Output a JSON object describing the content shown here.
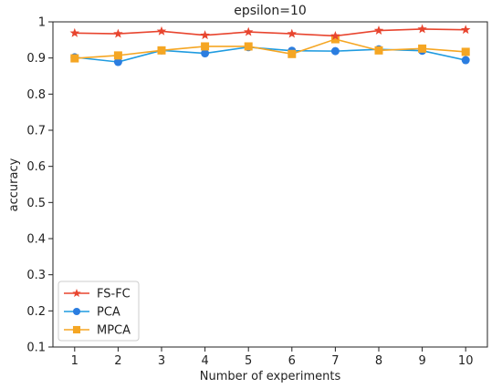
{
  "chart_data": {
    "type": "line",
    "title": "epsilon=10",
    "xlabel": "Number of experiments",
    "ylabel": "accuracy",
    "x": [
      1,
      2,
      3,
      4,
      5,
      6,
      7,
      8,
      9,
      10
    ],
    "xlim": [
      0.5,
      10.5
    ],
    "ylim": [
      0.1,
      1.0
    ],
    "yticks": [
      "0.1",
      "0.2",
      "0.3",
      "0.4",
      "0.5",
      "0.6",
      "0.7",
      "0.8",
      "0.9",
      "1"
    ],
    "xticks": [
      "1",
      "2",
      "3",
      "4",
      "5",
      "6",
      "7",
      "8",
      "9",
      "10"
    ],
    "grid": false,
    "legend_position": "lower-left",
    "series": [
      {
        "name": "FS-FC",
        "color": "#e8452f",
        "marker_color": "#e8452f",
        "marker": "star",
        "values": [
          0.969,
          0.967,
          0.974,
          0.963,
          0.972,
          0.967,
          0.961,
          0.976,
          0.98,
          0.978
        ]
      },
      {
        "name": "PCA",
        "color": "#1f9be0",
        "marker_color": "#2b7de0",
        "marker": "circle",
        "values": [
          0.902,
          0.889,
          0.921,
          0.913,
          0.93,
          0.92,
          0.919,
          0.924,
          0.92,
          0.894
        ]
      },
      {
        "name": "MPCA",
        "color": "#f5a623",
        "marker_color": "#f5a623",
        "marker": "square",
        "values": [
          0.899,
          0.907,
          0.921,
          0.932,
          0.932,
          0.911,
          0.952,
          0.921,
          0.926,
          0.917
        ]
      }
    ]
  }
}
